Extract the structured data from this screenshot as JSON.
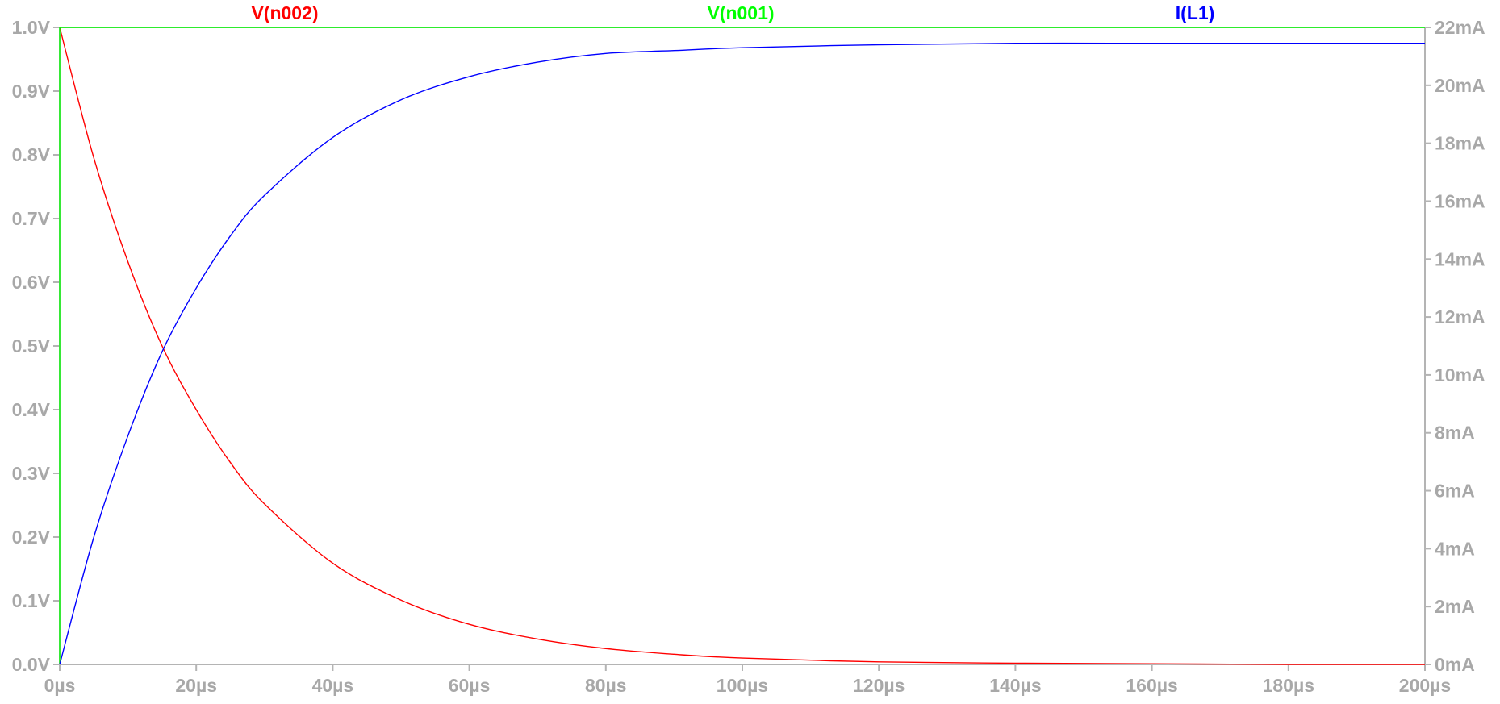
{
  "chart_data": {
    "type": "line",
    "grid": false,
    "legend": "top",
    "x": {
      "range": [
        0,
        200
      ],
      "unit": "µs",
      "ticks": [
        0,
        20,
        40,
        60,
        80,
        100,
        120,
        140,
        160,
        180,
        200
      ],
      "tick_labels": [
        "0µs",
        "20µs",
        "40µs",
        "60µs",
        "80µs",
        "100µs",
        "120µs",
        "140µs",
        "160µs",
        "180µs",
        "200µs"
      ]
    },
    "y_left": {
      "range": [
        0,
        1.0
      ],
      "unit": "V",
      "ticks": [
        0,
        0.1,
        0.2,
        0.3,
        0.4,
        0.5,
        0.6,
        0.7,
        0.8,
        0.9,
        1.0
      ],
      "tick_labels": [
        "0.0V",
        "0.1V",
        "0.2V",
        "0.3V",
        "0.4V",
        "0.5V",
        "0.6V",
        "0.7V",
        "0.8V",
        "0.9V",
        "1.0V"
      ]
    },
    "y_right": {
      "range": [
        0,
        22
      ],
      "unit": "mA",
      "ticks": [
        0,
        2,
        4,
        6,
        8,
        10,
        12,
        14,
        16,
        18,
        20,
        22
      ],
      "tick_labels": [
        "0mA",
        "2mA",
        "4mA",
        "6mA",
        "8mA",
        "10mA",
        "12mA",
        "14mA",
        "16mA",
        "18mA",
        "20mA",
        "22mA"
      ]
    },
    "series": [
      {
        "name": "V(n002)",
        "color": "#ff0000",
        "axis": "left",
        "x": [
          0,
          5,
          10,
          15,
          20,
          25,
          30,
          40,
          50,
          60,
          70,
          80,
          90,
          100,
          120,
          140,
          160,
          180,
          200
        ],
        "y": [
          1.0,
          0.795,
          0.632,
          0.5,
          0.4,
          0.317,
          0.252,
          0.159,
          0.101,
          0.063,
          0.04,
          0.025,
          0.016,
          0.01,
          0.004,
          0.002,
          0.001,
          0.0,
          0.0
        ]
      },
      {
        "name": "V(n001)",
        "color": "#00ff00",
        "axis": "left",
        "x": [
          0,
          0,
          200
        ],
        "y": [
          0.0,
          1.0,
          1.0
        ]
      },
      {
        "name": "I(L1)",
        "color": "#0000ff",
        "axis": "right",
        "x": [
          0,
          5,
          10,
          15,
          20,
          25,
          30,
          40,
          50,
          60,
          70,
          80,
          90,
          100,
          120,
          140,
          160,
          180,
          200
        ],
        "y": [
          0.0,
          4.4,
          7.9,
          10.8,
          13.0,
          14.8,
          16.2,
          18.2,
          19.5,
          20.3,
          20.8,
          21.1,
          21.2,
          21.3,
          21.4,
          21.45,
          21.45,
          21.45,
          21.45
        ]
      }
    ]
  }
}
